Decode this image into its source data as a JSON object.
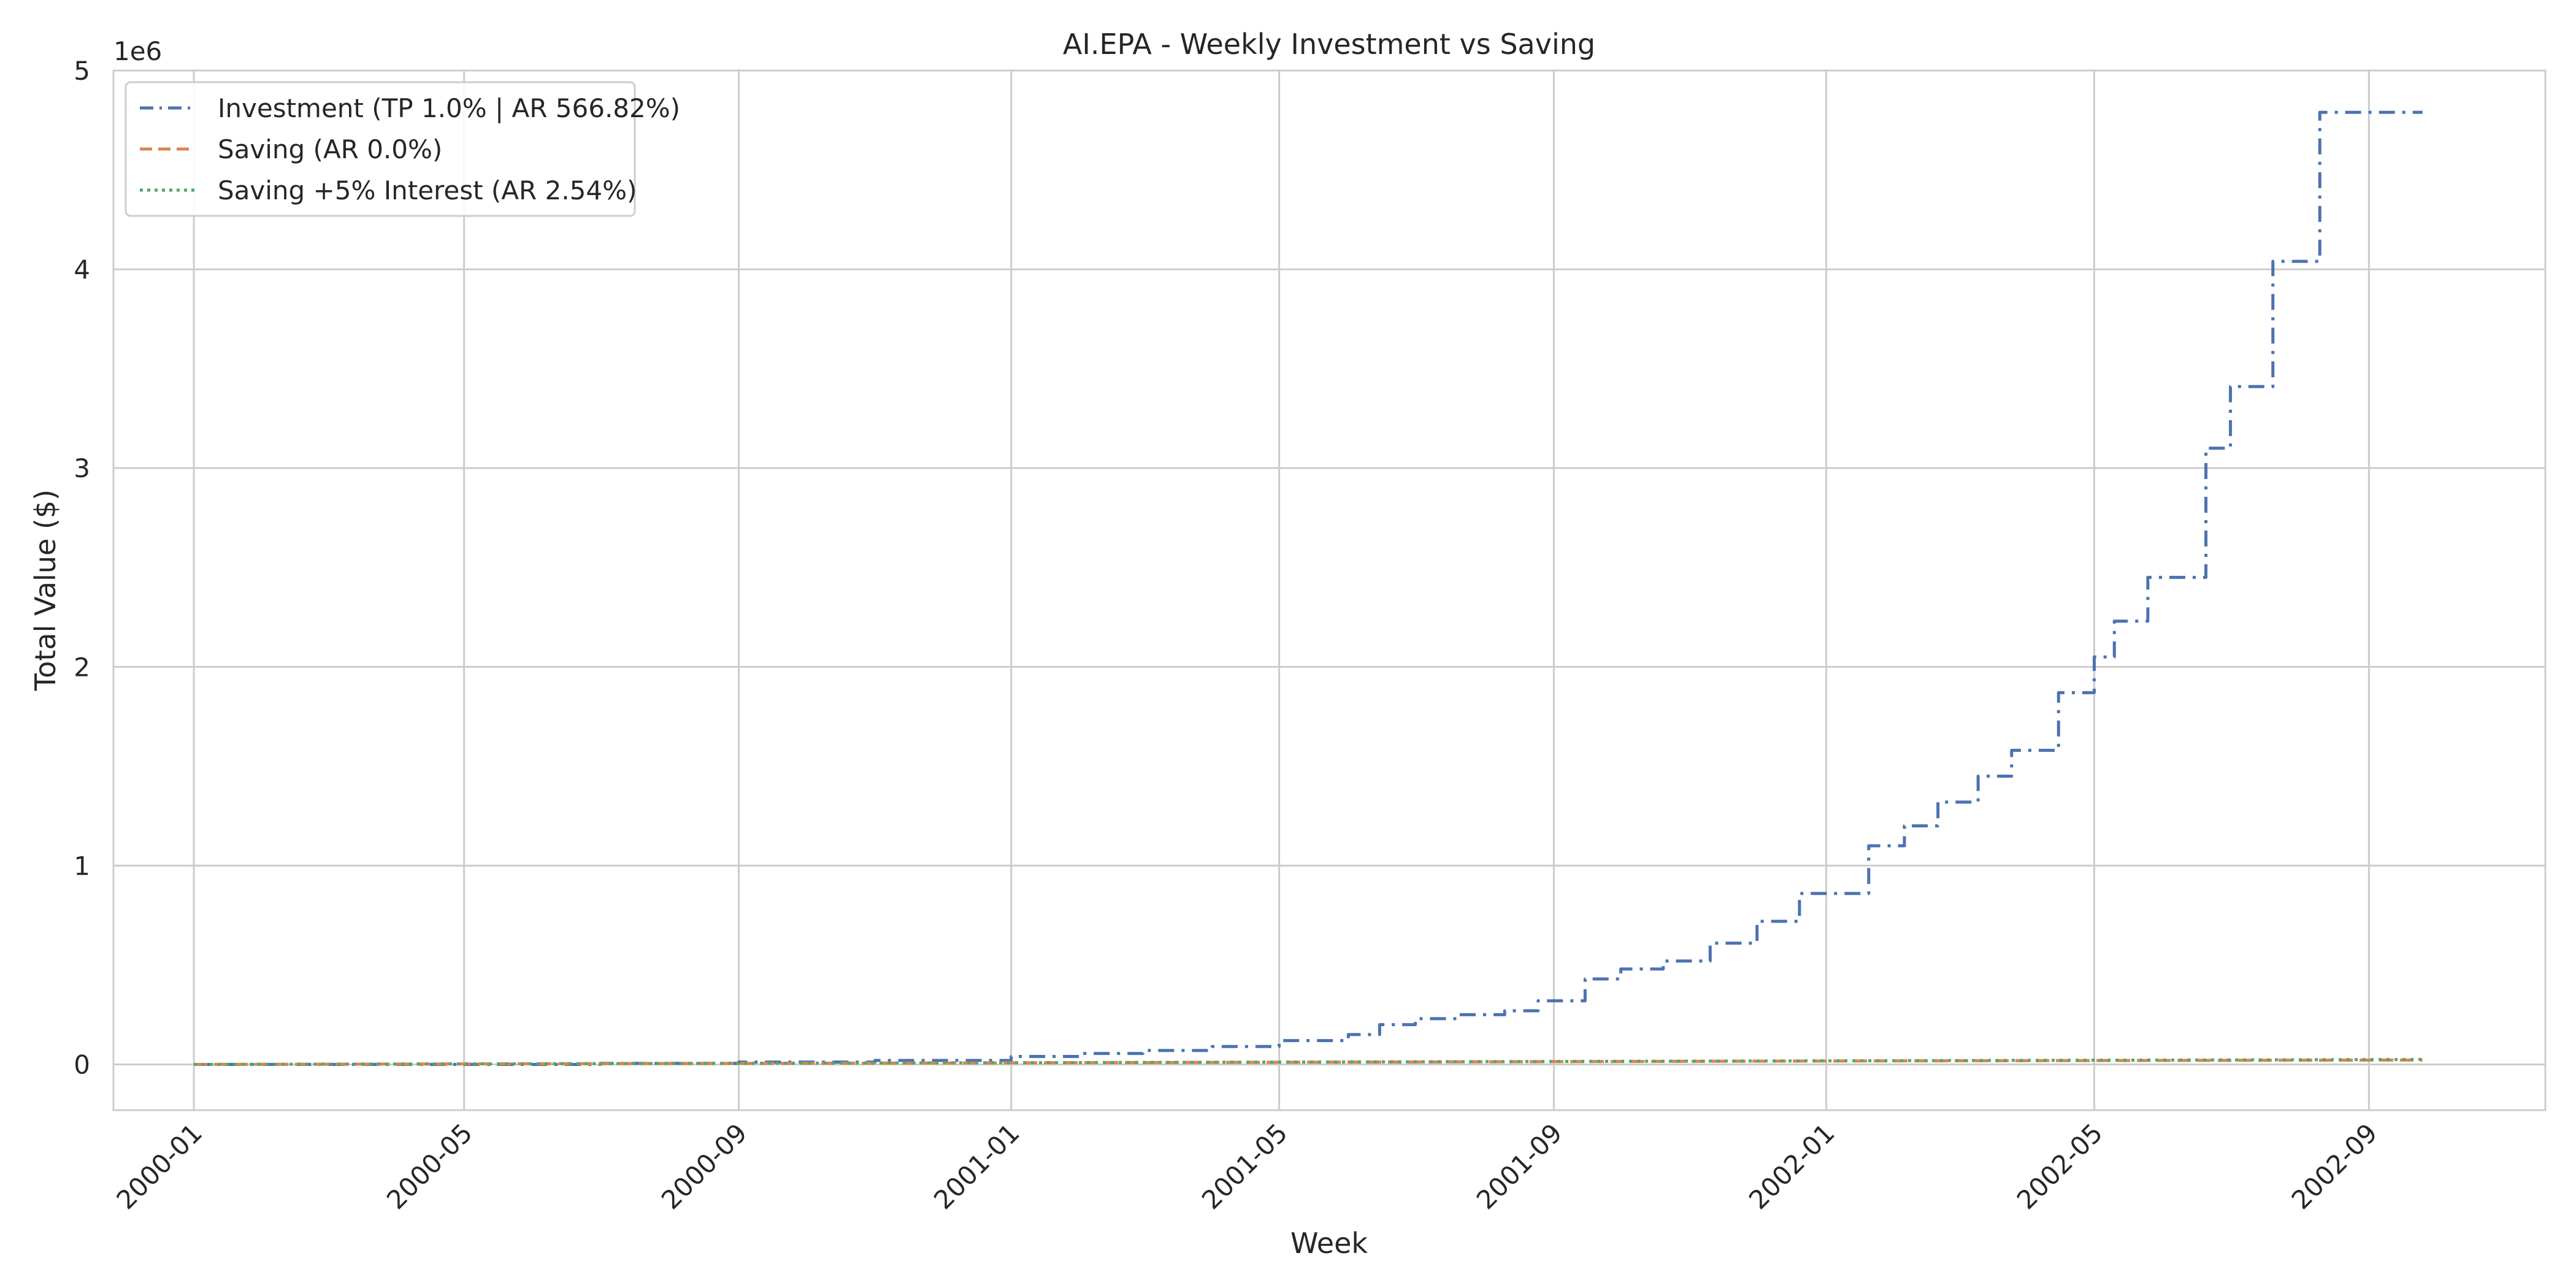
{
  "chart_data": {
    "type": "line",
    "title": "AI.EPA - Weekly Investment vs Saving",
    "xlabel": "Week",
    "ylabel": "Total Value ($)",
    "y_offset_label": "1e6",
    "y_scale_multiplier": 1000000,
    "x_tick_labels": [
      "2000-01",
      "2000-05",
      "2000-09",
      "2001-01",
      "2001-05",
      "2001-09",
      "2002-01",
      "2002-05",
      "2002-09"
    ],
    "y_tick_labels": [
      "0",
      "1",
      "2",
      "3",
      "4",
      "5"
    ],
    "xlim": [
      "1999-11-26",
      "2002-11-19"
    ],
    "ylim": [
      -230000,
      5000000
    ],
    "grid": true,
    "legend_position": "upper-left",
    "series": [
      {
        "name": "Investment (TP 1.0% | AR 566.82%)",
        "color": "#4c72b0",
        "style": "dashdot",
        "step": true,
        "points": [
          [
            "2000-01-01",
            0
          ],
          [
            "2000-07-01",
            5000
          ],
          [
            "2000-09-01",
            12000
          ],
          [
            "2000-11-01",
            20000
          ],
          [
            "2001-01-01",
            40000
          ],
          [
            "2001-02-01",
            55000
          ],
          [
            "2001-03-01",
            70000
          ],
          [
            "2001-04-01",
            90000
          ],
          [
            "2001-05-01",
            120000
          ],
          [
            "2001-06-01",
            150000
          ],
          [
            "2001-06-15",
            200000
          ],
          [
            "2001-07-01",
            230000
          ],
          [
            "2001-07-20",
            250000
          ],
          [
            "2001-08-10",
            270000
          ],
          [
            "2001-08-25",
            320000
          ],
          [
            "2001-09-15",
            430000
          ],
          [
            "2001-10-01",
            480000
          ],
          [
            "2001-10-20",
            520000
          ],
          [
            "2001-11-10",
            610000
          ],
          [
            "2001-12-01",
            720000
          ],
          [
            "2001-12-20",
            860000
          ],
          [
            "2002-01-20",
            1100000
          ],
          [
            "2002-02-05",
            1200000
          ],
          [
            "2002-02-20",
            1320000
          ],
          [
            "2002-03-10",
            1450000
          ],
          [
            "2002-03-25",
            1580000
          ],
          [
            "2002-04-15",
            1870000
          ],
          [
            "2002-05-01",
            2050000
          ],
          [
            "2002-05-10",
            2230000
          ],
          [
            "2002-05-25",
            2450000
          ],
          [
            "2002-06-20",
            3100000
          ],
          [
            "2002-07-01",
            3410000
          ],
          [
            "2002-07-20",
            4040000
          ],
          [
            "2002-08-10",
            4790000
          ],
          [
            "2002-09-25",
            4790000
          ]
        ]
      },
      {
        "name": "Saving (AR 0.0%)",
        "color": "#dd8452",
        "style": "dashed",
        "step": false,
        "points": [
          [
            "2000-01-01",
            0
          ],
          [
            "2001-01-01",
            8000
          ],
          [
            "2002-01-01",
            17000
          ],
          [
            "2002-09-25",
            22000
          ]
        ]
      },
      {
        "name": "Saving +5% Interest (AR 2.54%)",
        "color": "#55a868",
        "style": "dotted",
        "step": false,
        "points": [
          [
            "2000-01-01",
            0
          ],
          [
            "2001-01-01",
            8500
          ],
          [
            "2002-01-01",
            18000
          ],
          [
            "2002-09-25",
            25000
          ]
        ]
      }
    ]
  }
}
